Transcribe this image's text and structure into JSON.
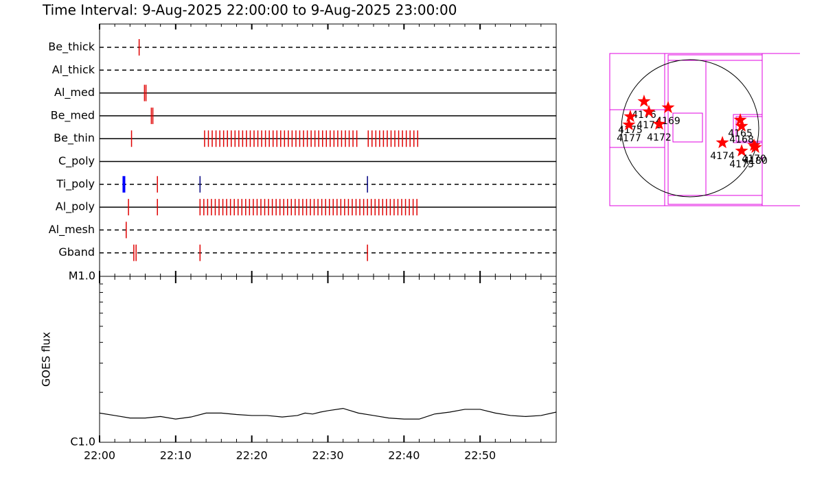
{
  "title": "Time Interval:  9-Aug-2025 22:00:00 to  9-Aug-2025 23:00:00",
  "chart_data": [
    {
      "type": "timeline",
      "xlim": [
        0,
        60
      ],
      "xticks": [
        0,
        10,
        20,
        30,
        40,
        50
      ],
      "xminor": [
        2,
        4,
        6,
        8,
        12,
        14,
        16,
        18,
        22,
        24,
        26,
        28,
        32,
        34,
        36,
        38,
        42,
        44,
        46,
        48,
        52,
        54,
        56,
        58
      ],
      "rows": [
        {
          "name": "Be_thick",
          "style": "dashed",
          "color": "#e00000",
          "obs": [
            5.2
          ]
        },
        {
          "name": "Al_thick",
          "style": "dashed",
          "color": "#e00000",
          "obs": []
        },
        {
          "name": "Al_med",
          "style": "solid",
          "color": "#e00000",
          "obs": [
            5.9,
            6.1
          ]
        },
        {
          "name": "Be_med",
          "style": "solid",
          "color": "#e00000",
          "obs": [
            6.8,
            7.0
          ]
        },
        {
          "name": "Be_thin",
          "style": "solid",
          "color": "#e00000",
          "obs": [
            4.2,
            13.8,
            14.3,
            14.8,
            15.3,
            15.8,
            16.3,
            16.8,
            17.3,
            17.8,
            18.3,
            18.8,
            19.3,
            19.8,
            20.3,
            20.8,
            21.3,
            21.8,
            22.3,
            22.8,
            23.3,
            23.8,
            24.3,
            24.8,
            25.3,
            25.8,
            26.3,
            26.8,
            27.3,
            27.8,
            28.3,
            28.8,
            29.3,
            29.8,
            30.3,
            30.8,
            31.3,
            31.8,
            32.3,
            32.8,
            33.3,
            33.8,
            35.3,
            35.8,
            36.3,
            36.8,
            37.3,
            37.8,
            38.3,
            38.8,
            39.3,
            39.8,
            40.3,
            40.8,
            41.3,
            41.8
          ]
        },
        {
          "name": "C_poly",
          "style": "solid",
          "color": "#e00000",
          "obs": []
        },
        {
          "name": "Ti_poly",
          "style": "dashed",
          "colors": [
            "#0000ff",
            "#e00000",
            "#000080",
            "#000080"
          ],
          "obs": [
            3.2,
            7.6,
            13.2,
            35.2
          ]
        },
        {
          "name": "Al_poly",
          "style": "solid",
          "color": "#e00000",
          "obs": [
            3.8,
            7.6,
            13.2,
            13.7,
            14.2,
            14.7,
            15.2,
            15.7,
            16.2,
            16.7,
            17.2,
            17.7,
            18.2,
            18.7,
            19.2,
            19.7,
            20.2,
            20.7,
            21.2,
            21.7,
            22.2,
            22.7,
            23.2,
            23.7,
            24.2,
            24.7,
            25.2,
            25.7,
            26.2,
            26.7,
            27.2,
            27.7,
            28.2,
            28.7,
            29.2,
            29.7,
            30.2,
            30.7,
            31.2,
            31.7,
            32.2,
            32.7,
            33.2,
            33.7,
            34.2,
            34.7,
            35.2,
            35.7,
            36.2,
            36.7,
            37.2,
            37.7,
            38.2,
            38.7,
            39.2,
            39.7,
            40.2,
            40.7,
            41.2,
            41.7
          ]
        },
        {
          "name": "Al_mesh",
          "style": "dashed",
          "color": "#e00000",
          "obs": [
            3.5
          ]
        },
        {
          "name": "Gband",
          "style": "dashed",
          "color": "#e00000",
          "obs": [
            4.5,
            4.8,
            13.2,
            35.2
          ]
        }
      ]
    },
    {
      "type": "line",
      "ylabel": "GOES flux",
      "color": "#000000",
      "log": true,
      "xlim": [
        0,
        60
      ],
      "xticks": [
        {
          "value": 0,
          "label": "22:00"
        },
        {
          "value": 10,
          "label": "22:10"
        },
        {
          "value": 20,
          "label": "22:20"
        },
        {
          "value": 30,
          "label": "22:30"
        },
        {
          "value": 40,
          "label": "22:40"
        },
        {
          "value": 50,
          "label": "22:50"
        }
      ],
      "xminor": [
        2,
        4,
        6,
        8,
        12,
        14,
        16,
        18,
        22,
        24,
        26,
        28,
        32,
        34,
        36,
        38,
        42,
        44,
        46,
        48,
        52,
        54,
        56,
        58
      ],
      "ylim": [
        1e-06,
        1e-05
      ],
      "yticks": [
        {
          "value": 1e-06,
          "label": "C1.0"
        },
        {
          "value": 1e-05,
          "label": "M1.0"
        }
      ],
      "yminor": [
        2e-06,
        3e-06,
        4e-06,
        5e-06,
        6e-06,
        7e-06,
        8e-06,
        9e-06
      ],
      "x": [
        0,
        2,
        4,
        6,
        8,
        10,
        12,
        14,
        16,
        18,
        20,
        22,
        24,
        26,
        27,
        28,
        29,
        30,
        32,
        34,
        36,
        38,
        40,
        42,
        44,
        46,
        48,
        50,
        52,
        54,
        56,
        58,
        60
      ],
      "values": [
        1.5e-06,
        1.45e-06,
        1.4e-06,
        1.4e-06,
        1.43e-06,
        1.38e-06,
        1.42e-06,
        1.5e-06,
        1.5e-06,
        1.47e-06,
        1.45e-06,
        1.45e-06,
        1.42e-06,
        1.45e-06,
        1.5e-06,
        1.48e-06,
        1.52e-06,
        1.55e-06,
        1.6e-06,
        1.5e-06,
        1.45e-06,
        1.4e-06,
        1.38e-06,
        1.38e-06,
        1.48e-06,
        1.52e-06,
        1.58e-06,
        1.58e-06,
        1.5e-06,
        1.45e-06,
        1.43e-06,
        1.45e-06,
        1.52e-06
      ]
    },
    {
      "type": "map",
      "radius": 950,
      "color": "#ff0000",
      "regions": [
        {
          "name": "4176",
          "x": -637,
          "y": 371
        },
        {
          "name": "4171",
          "x": -570,
          "y": 228
        },
        {
          "name": "4169",
          "x": -304,
          "y": 285
        },
        {
          "name": "4172",
          "x": -428,
          "y": 57
        },
        {
          "name": "4175",
          "x": -827,
          "y": 162
        },
        {
          "name": "4177",
          "x": -846,
          "y": 48
        },
        {
          "name": "4165",
          "x": 694,
          "y": 114
        },
        {
          "name": "4168",
          "x": 713,
          "y": 29
        },
        {
          "name": "4174",
          "x": 447,
          "y": -200
        },
        {
          "name": "4173",
          "x": 713,
          "y": -314
        },
        {
          "name": "4170",
          "x": 884,
          "y": -238
        },
        {
          "name": "4180",
          "x": 903,
          "y": -266
        }
      ]
    }
  ]
}
